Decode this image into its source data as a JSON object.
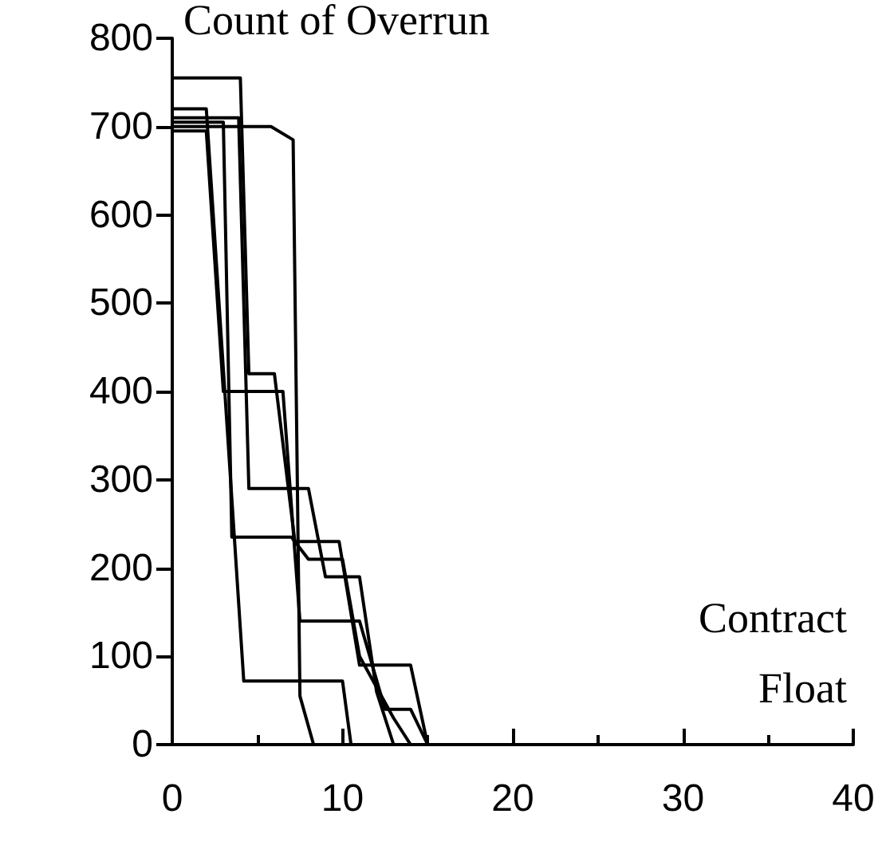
{
  "chart_data": {
    "type": "line",
    "title": "Count of Overrun",
    "annotations": [
      "Contract",
      "Float"
    ],
    "xlim": [
      0,
      40
    ],
    "xticks": [
      0,
      10,
      20,
      30,
      40
    ],
    "ylim": [
      0,
      800
    ],
    "yticks": [
      0,
      100,
      200,
      300,
      400,
      500,
      600,
      700,
      800
    ],
    "grid": false,
    "marker": "none",
    "line_style": "solid",
    "series": [
      {
        "color": "#000000",
        "x": [
          0,
          4,
          4.5,
          6,
          7.2,
          9.8,
          11,
          14,
          15,
          17
        ],
        "values": [
          755,
          755,
          420,
          420,
          230,
          230,
          90,
          90,
          0,
          0
        ]
      },
      {
        "color": "#000000",
        "x": [
          0,
          5.8,
          7.1,
          7.5,
          8.3
        ],
        "values": [
          700,
          700,
          685,
          55,
          0
        ]
      },
      {
        "color": "#000000",
        "x": [
          0,
          2,
          4.2,
          10,
          10.5
        ],
        "values": [
          720,
          720,
          72,
          72,
          0
        ]
      },
      {
        "color": "#000000",
        "x": [
          0,
          3.9,
          4.5,
          8,
          9,
          11,
          12,
          13
        ],
        "values": [
          710,
          710,
          290,
          290,
          190,
          190,
          60,
          0
        ]
      },
      {
        "color": "#000000",
        "x": [
          0,
          2,
          3,
          6.5,
          7.5,
          11,
          12.5,
          14,
          15
        ],
        "values": [
          695,
          695,
          400,
          400,
          140,
          140,
          40,
          40,
          0
        ]
      },
      {
        "color": "#000000",
        "x": [
          0,
          3,
          3.5,
          7,
          8,
          10,
          11,
          13,
          14,
          17
        ],
        "values": [
          705,
          705,
          235,
          235,
          210,
          210,
          100,
          30,
          0,
          0
        ]
      }
    ]
  }
}
